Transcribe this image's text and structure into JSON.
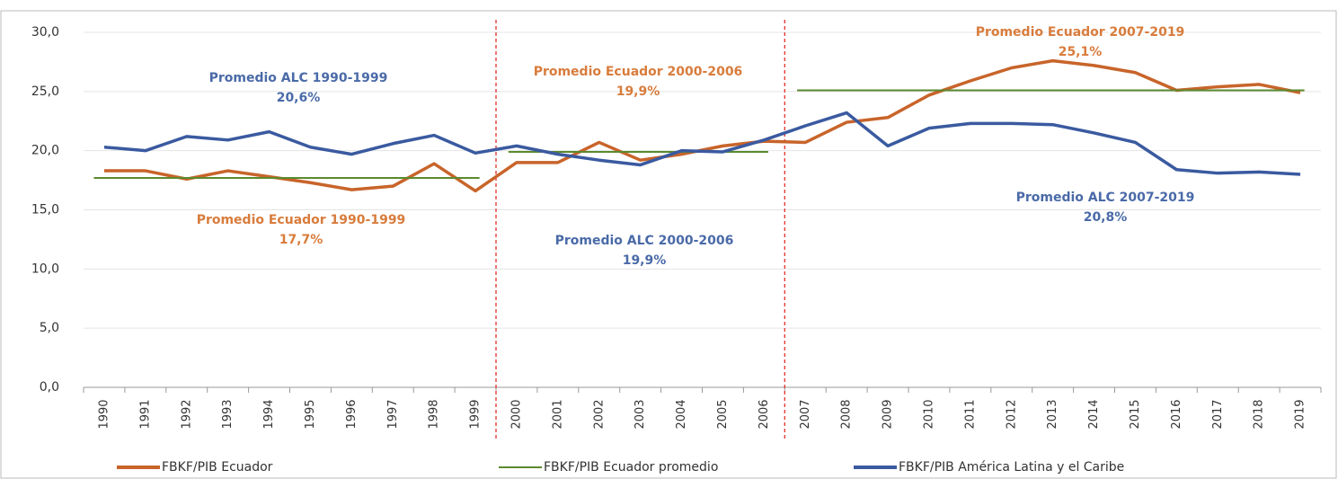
{
  "chart_data": {
    "type": "line",
    "categories": [
      "1990",
      "1991",
      "1992",
      "1993",
      "1994",
      "1995",
      "1996",
      "1997",
      "1998",
      "1999",
      "2000",
      "2001",
      "2002",
      "2003",
      "2004",
      "2005",
      "2006",
      "2007",
      "2008",
      "2009",
      "2010",
      "2011",
      "2012",
      "2013",
      "2014",
      "2015",
      "2016",
      "2017",
      "2018",
      "2019"
    ],
    "series": [
      {
        "name": "FBKF/PIB Ecuador",
        "color": "#c8642a",
        "values": [
          18.3,
          18.3,
          17.6,
          18.3,
          17.8,
          17.3,
          16.7,
          17.0,
          18.9,
          16.6,
          19.0,
          19.0,
          20.7,
          19.2,
          19.7,
          20.4,
          20.8,
          20.7,
          22.4,
          22.8,
          24.7,
          25.9,
          27.0,
          27.6,
          27.2,
          26.6,
          25.1,
          25.4,
          25.6,
          24.9
        ]
      },
      {
        "name": "FBKF/PIB Ecuador promedio",
        "color": "#5a8a2e",
        "values": [
          17.7,
          17.7,
          17.7,
          17.7,
          17.7,
          17.7,
          17.7,
          17.7,
          17.7,
          17.7,
          19.9,
          19.9,
          19.9,
          19.9,
          19.9,
          19.9,
          19.9,
          25.1,
          25.1,
          25.1,
          25.1,
          25.1,
          25.1,
          25.1,
          25.1,
          25.1,
          25.1,
          25.1,
          25.1,
          25.1
        ]
      },
      {
        "name": "FBKF/PIB América Latina y el Caribe",
        "color": "#3a5aa0",
        "values": [
          20.3,
          20.0,
          21.2,
          20.9,
          21.6,
          20.3,
          19.7,
          20.6,
          21.3,
          19.8,
          20.4,
          19.7,
          19.2,
          18.8,
          20.0,
          19.9,
          20.9,
          22.1,
          23.2,
          20.4,
          21.9,
          22.3,
          22.3,
          22.2,
          21.5,
          20.7,
          18.4,
          18.1,
          18.2,
          18.0
        ]
      }
    ],
    "ylim": [
      0,
      30
    ],
    "yticks": [
      {
        "value": 0,
        "label": "0,0"
      },
      {
        "value": 5,
        "label": "5,0"
      },
      {
        "value": 10,
        "label": "10,0"
      },
      {
        "value": 15,
        "label": "15,0"
      },
      {
        "value": 20,
        "label": "20,0"
      },
      {
        "value": 25,
        "label": "25,0"
      },
      {
        "value": 30,
        "label": "30,0"
      }
    ],
    "grid": true,
    "annotations": [
      {
        "lines": [
          "Promedio ALC 1990-1999",
          "20,6%"
        ],
        "color": "#4a6aa8"
      },
      {
        "lines": [
          "Promedio Ecuador 2000-2006",
          "19,9%"
        ],
        "color": "#d87c3c"
      },
      {
        "lines": [
          "Promedio Ecuador 1990-1999",
          "17,7%"
        ],
        "color": "#d87c3c"
      },
      {
        "lines": [
          "Promedio ALC 2000-2006",
          "19,9%"
        ],
        "color": "#4a6aa8"
      },
      {
        "lines": [
          "Promedio Ecuador 2007-2019",
          "25,1%"
        ],
        "color": "#d87c3c"
      },
      {
        "lines": [
          "Promedio ALC 2007-2019",
          "20,8%"
        ],
        "color": "#4a6aa8"
      }
    ]
  }
}
